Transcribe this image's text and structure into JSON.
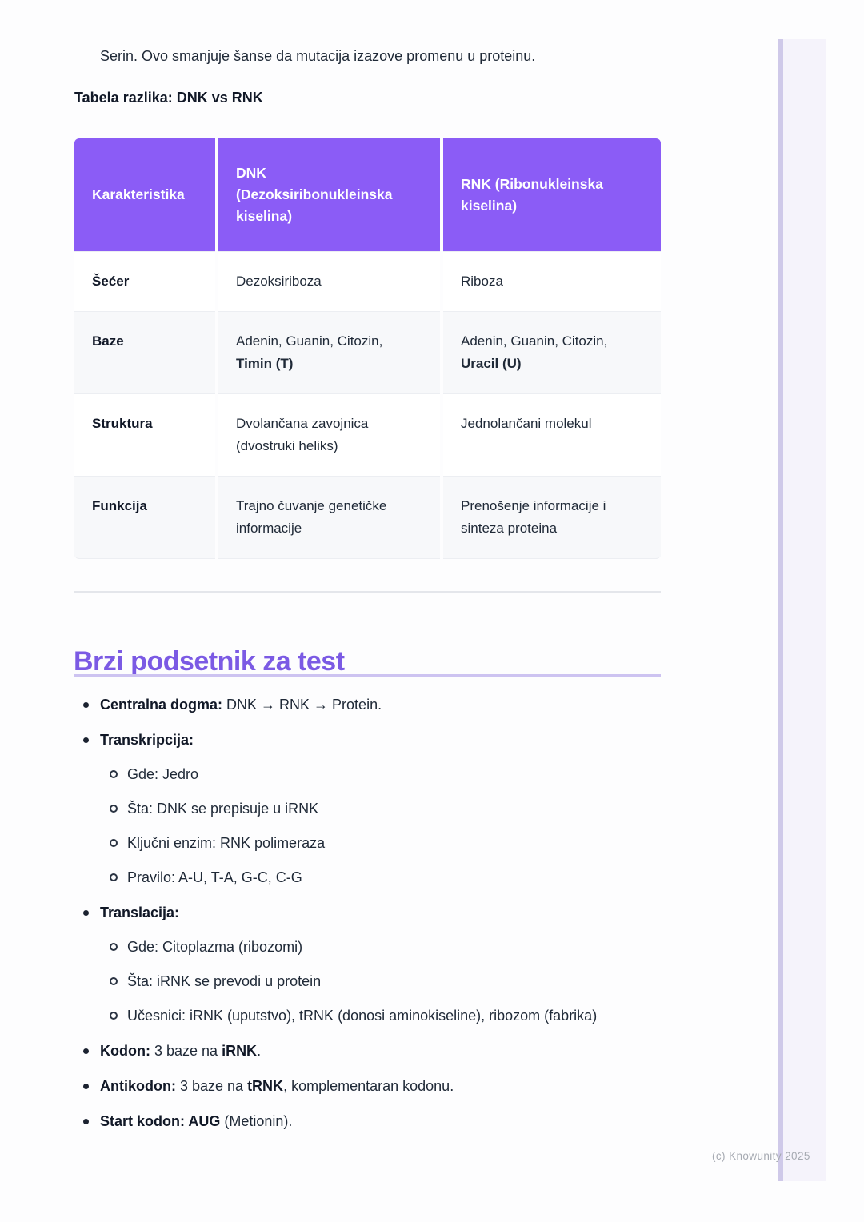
{
  "colors": {
    "table_header_bg": "#8B5CF6",
    "heading": "#7B5AE4",
    "heading_underline": "#CDC3F1",
    "divider": "#E4E6EB",
    "text": "#1F2937",
    "muted": "#A6AAB2",
    "sidebar_bg": "#F5F3FB",
    "sidebar_edge": "#CFC9E9",
    "row_stripe": "#F7F8FA"
  },
  "intro": {
    "text": "Serin. Ovo smanjuje šanse da mutacija izazove promenu u proteinu."
  },
  "table_section": {
    "label": "Tabela razlika: DNK vs RNK"
  },
  "table": {
    "headers": [
      "Karakteristika",
      "DNK (Dezoksiribonukleinska kiselina)",
      "RNK (Ribonukleinska kiselina)"
    ],
    "rows": [
      {
        "label": "Šećer",
        "dnk": [
          {
            "text": "Dezoksiriboza",
            "bold": false
          }
        ],
        "rnk": [
          {
            "text": "Riboza",
            "bold": false
          }
        ]
      },
      {
        "label": "Baze",
        "dnk": [
          {
            "text": "Adenin, Guanin, Citozin, ",
            "bold": false
          },
          {
            "text": "Timin (T)",
            "bold": true
          }
        ],
        "rnk": [
          {
            "text": "Adenin, Guanin, Citozin, ",
            "bold": false
          },
          {
            "text": "Uracil (U)",
            "bold": true
          }
        ]
      },
      {
        "label": "Struktura",
        "dnk": [
          {
            "text": "Dvolančana zavojnica (dvostruki heliks)",
            "bold": false
          }
        ],
        "rnk": [
          {
            "text": "Jednolančani molekul",
            "bold": false
          }
        ]
      },
      {
        "label": "Funkcija",
        "dnk": [
          {
            "text": "Trajno čuvanje genetičke informacije",
            "bold": false
          }
        ],
        "rnk": [
          {
            "text": "Prenošenje informacije i sinteza proteina",
            "bold": false
          }
        ]
      }
    ]
  },
  "reminder": {
    "heading": "Brzi podsetnik za test",
    "items": [
      {
        "level": 1,
        "segments": [
          {
            "text": "Centralna dogma:",
            "bold": true
          },
          {
            "text": " DNK → RNK → Protein.",
            "bold": false
          }
        ]
      },
      {
        "level": 1,
        "segments": [
          {
            "text": "Transkripcija:",
            "bold": true
          }
        ]
      },
      {
        "level": 2,
        "segments": [
          {
            "text": "Gde: Jedro",
            "bold": false
          }
        ]
      },
      {
        "level": 2,
        "segments": [
          {
            "text": "Šta: DNK se prepisuje u iRNK",
            "bold": false
          }
        ]
      },
      {
        "level": 2,
        "segments": [
          {
            "text": "Ključni enzim: RNK polimeraza",
            "bold": false
          }
        ]
      },
      {
        "level": 2,
        "segments": [
          {
            "text": "Pravilo: A-U, T-A, G-C, C-G",
            "bold": false
          }
        ]
      },
      {
        "level": 1,
        "segments": [
          {
            "text": "Translacija:",
            "bold": true
          }
        ]
      },
      {
        "level": 2,
        "segments": [
          {
            "text": "Gde: Citoplazma (ribozomi)",
            "bold": false
          }
        ]
      },
      {
        "level": 2,
        "segments": [
          {
            "text": "Šta: iRNK se prevodi u protein",
            "bold": false
          }
        ]
      },
      {
        "level": 2,
        "segments": [
          {
            "text": "Učesnici: iRNK (uputstvo), tRNK (donosi aminokiseline), ribozom (fabrika)",
            "bold": false
          }
        ]
      },
      {
        "level": 1,
        "segments": [
          {
            "text": "Kodon:",
            "bold": true
          },
          {
            "text": " 3 baze na ",
            "bold": false
          },
          {
            "text": "iRNK",
            "bold": true
          },
          {
            "text": ".",
            "bold": false
          }
        ]
      },
      {
        "level": 1,
        "segments": [
          {
            "text": "Antikodon:",
            "bold": true
          },
          {
            "text": " 3 baze na ",
            "bold": false
          },
          {
            "text": "tRNK",
            "bold": true
          },
          {
            "text": ", komplementaran kodonu.",
            "bold": false
          }
        ]
      },
      {
        "level": 1,
        "segments": [
          {
            "text": "Start kodon: AUG",
            "bold": true
          },
          {
            "text": " (Metionin).",
            "bold": false
          }
        ]
      }
    ]
  },
  "footer": {
    "copyright": "(c) Knowunity 2025"
  }
}
